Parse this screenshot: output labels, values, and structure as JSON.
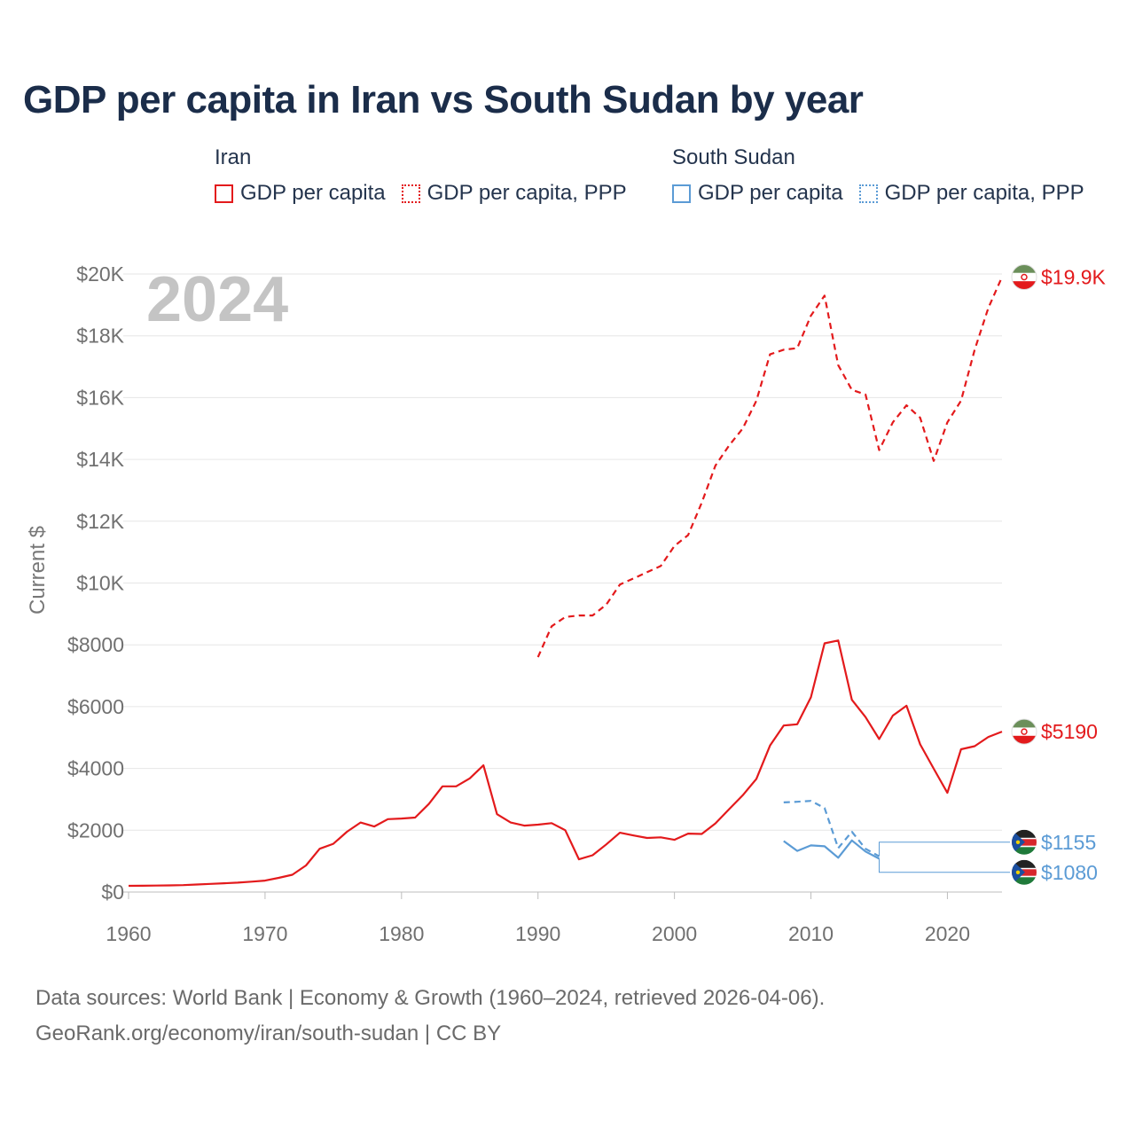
{
  "title": "GDP per capita in Iran vs South Sudan by year",
  "legend": [
    {
      "country": "Iran",
      "color": "#e31a1c",
      "items": [
        {
          "label": "GDP per capita",
          "style": "solid"
        },
        {
          "label": "GDP per capita, PPP",
          "style": "dotted"
        }
      ]
    },
    {
      "country": "South Sudan",
      "color": "#5b9bd5",
      "items": [
        {
          "label": "GDP per capita",
          "style": "solid"
        },
        {
          "label": "GDP per capita, PPP",
          "style": "dotted"
        }
      ]
    }
  ],
  "footer": {
    "line1": "Data sources: World Bank | Economy & Growth (1960–2024, retrieved 2026-04-06).",
    "line2": "GeoRank.org/economy/iran/south-sudan | CC BY"
  },
  "chart_data": {
    "type": "line",
    "year_label": "2024",
    "ylabel": "Current $",
    "xlim": [
      1960,
      2024
    ],
    "ylim": [
      0,
      20000
    ],
    "x_ticks": [
      1960,
      1970,
      1980,
      1990,
      2000,
      2010,
      2020
    ],
    "y_ticks": [
      {
        "value": 0,
        "label": "$0"
      },
      {
        "value": 2000,
        "label": "$2000"
      },
      {
        "value": 4000,
        "label": "$4000"
      },
      {
        "value": 6000,
        "label": "$6000"
      },
      {
        "value": 8000,
        "label": "$8000"
      },
      {
        "value": 10000,
        "label": "$10K"
      },
      {
        "value": 12000,
        "label": "$12K"
      },
      {
        "value": 14000,
        "label": "$14K"
      },
      {
        "value": 16000,
        "label": "$16K"
      },
      {
        "value": 18000,
        "label": "$18K"
      },
      {
        "value": 20000,
        "label": "$20K"
      }
    ],
    "series": [
      {
        "name": "Iran GDP per capita",
        "country": "Iran",
        "dash": "solid",
        "color": "#e31a1c",
        "end_label": "$5190",
        "x": [
          1960,
          1961,
          1962,
          1963,
          1964,
          1965,
          1966,
          1967,
          1968,
          1969,
          1970,
          1971,
          1972,
          1973,
          1974,
          1975,
          1976,
          1977,
          1978,
          1979,
          1980,
          1981,
          1982,
          1983,
          1984,
          1985,
          1986,
          1987,
          1988,
          1989,
          1990,
          1991,
          1992,
          1993,
          1994,
          1995,
          1996,
          1997,
          1998,
          1999,
          2000,
          2001,
          2002,
          2003,
          2004,
          2005,
          2006,
          2007,
          2008,
          2009,
          2010,
          2011,
          2012,
          2013,
          2014,
          2015,
          2016,
          2017,
          2018,
          2019,
          2020,
          2021,
          2022,
          2023,
          2024
        ],
        "values": [
          200,
          205,
          210,
          215,
          225,
          245,
          265,
          285,
          305,
          335,
          370,
          460,
          560,
          860,
          1400,
          1560,
          1950,
          2250,
          2120,
          2360,
          2380,
          2410,
          2850,
          3420,
          3420,
          3680,
          4100,
          2520,
          2250,
          2150,
          2180,
          2230,
          2000,
          1060,
          1190,
          1540,
          1920,
          1830,
          1750,
          1770,
          1690,
          1890,
          1880,
          2220,
          2680,
          3130,
          3660,
          4740,
          5390,
          5430,
          6300,
          8050,
          8140,
          6220,
          5660,
          4950,
          5710,
          6030,
          4780,
          3990,
          3210,
          4620,
          4720,
          5020,
          5190
        ]
      },
      {
        "name": "Iran GDP per capita, PPP",
        "country": "Iran",
        "dash": "dashed",
        "color": "#e31a1c",
        "end_label": "$19.9K",
        "x": [
          1990,
          1991,
          1992,
          1993,
          1994,
          1995,
          1996,
          1997,
          1998,
          1999,
          2000,
          2001,
          2002,
          2003,
          2004,
          2005,
          2006,
          2007,
          2008,
          2009,
          2010,
          2011,
          2012,
          2013,
          2014,
          2015,
          2016,
          2017,
          2018,
          2019,
          2020,
          2021,
          2022,
          2023,
          2024
        ],
        "values": [
          7600,
          8600,
          8900,
          8950,
          8950,
          9300,
          9950,
          10150,
          10350,
          10550,
          11200,
          11550,
          12600,
          13800,
          14450,
          15000,
          15900,
          17400,
          17550,
          17600,
          18650,
          19300,
          17050,
          16250,
          16100,
          14300,
          15200,
          15750,
          15350,
          13950,
          15200,
          15900,
          17550,
          18900,
          19900
        ]
      },
      {
        "name": "South Sudan GDP per capita",
        "country": "South Sudan",
        "dash": "solid",
        "color": "#5b9bd5",
        "end_label": "$1080",
        "x": [
          2008,
          2009,
          2010,
          2011,
          2012,
          2013,
          2014,
          2015
        ],
        "values": [
          1650,
          1330,
          1510,
          1480,
          1110,
          1670,
          1310,
          1080
        ]
      },
      {
        "name": "South Sudan GDP per capita, PPP",
        "country": "South Sudan",
        "dash": "dashed",
        "color": "#5b9bd5",
        "end_label": "$1155",
        "x": [
          2008,
          2009,
          2010,
          2011,
          2012,
          2013,
          2014,
          2015
        ],
        "values": [
          2900,
          2920,
          2950,
          2720,
          1420,
          1950,
          1400,
          1155
        ]
      }
    ]
  }
}
